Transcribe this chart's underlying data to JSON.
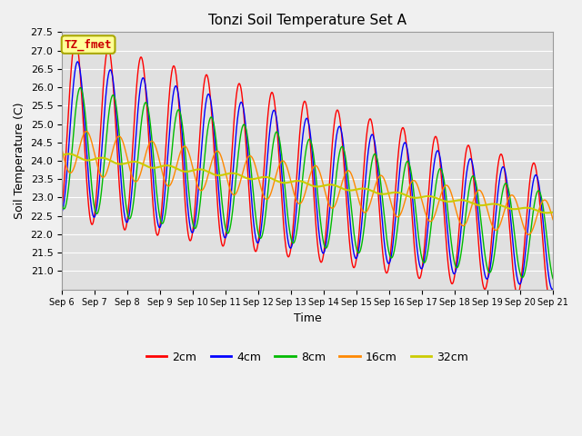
{
  "title": "Tonzi Soil Temperature Set A",
  "xlabel": "Time",
  "ylabel": "Soil Temperature (C)",
  "annotation": "TZ_fmet",
  "ylim": [
    20.5,
    27.5
  ],
  "xlim": [
    0,
    360
  ],
  "yticks": [
    21.0,
    21.5,
    22.0,
    22.5,
    23.0,
    23.5,
    24.0,
    24.5,
    25.0,
    25.5,
    26.0,
    26.5,
    27.0,
    27.5
  ],
  "xtick_labels": [
    "Sep 6",
    "Sep 7",
    "Sep 8",
    "Sep 9",
    "Sep 10",
    "Sep 11",
    "Sep 12",
    "Sep 13",
    "Sep 14",
    "Sep 15",
    "Sep 16",
    "Sep 17",
    "Sep 18",
    "Sep 19",
    "Sep 20",
    "Sep 21"
  ],
  "colors": {
    "2cm": "#ff0000",
    "4cm": "#0000ff",
    "8cm": "#00bb00",
    "16cm": "#ff8800",
    "32cm": "#cccc00"
  },
  "fig_bg": "#f0f0f0",
  "plot_bg": "#e0e0e0",
  "title_fontsize": 11,
  "label_fontsize": 9,
  "tick_fontsize": 8
}
